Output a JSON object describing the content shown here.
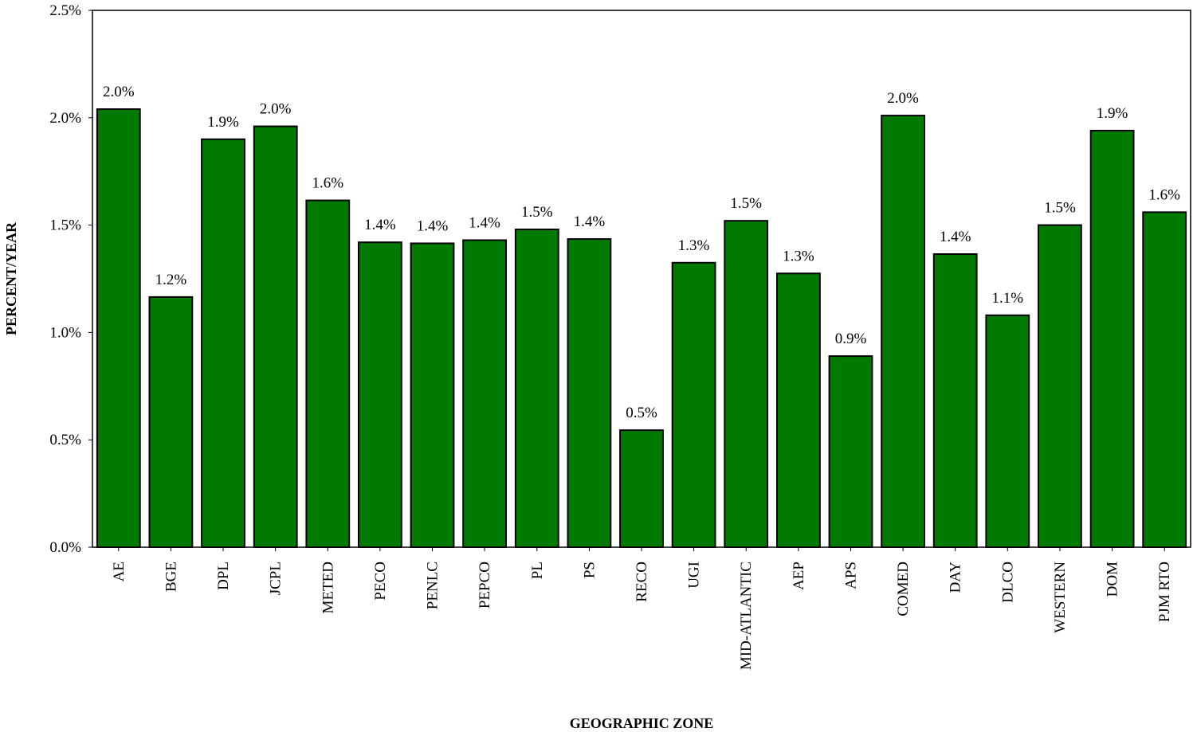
{
  "chart_data": {
    "type": "bar",
    "title": "",
    "xlabel": "GEOGRAPHIC ZONE",
    "ylabel": "PERCENT/YEAR",
    "ylim": [
      0,
      2.5
    ],
    "yticks": [
      0.0,
      0.5,
      1.0,
      1.5,
      2.0,
      2.5
    ],
    "ytick_labels": [
      "0.0%",
      "0.5%",
      "1.0%",
      "1.5%",
      "2.0%",
      "2.5%"
    ],
    "grid": false,
    "legend": "none",
    "bar_color": "#007a00",
    "categories": [
      "AE",
      "BGE",
      "DPL",
      "JCPL",
      "METED",
      "PECO",
      "PENLC",
      "PEPCO",
      "PL",
      "PS",
      "RECO",
      "UGI",
      "MID-ATLANTIC",
      "AEP",
      "APS",
      "COMED",
      "DAY",
      "DLCO",
      "WESTERN",
      "DOM",
      "PJM RTO"
    ],
    "values": [
      2.04,
      1.165,
      1.9,
      1.96,
      1.615,
      1.42,
      1.415,
      1.43,
      1.48,
      1.435,
      0.545,
      1.325,
      1.52,
      1.275,
      0.89,
      2.01,
      1.365,
      1.08,
      1.5,
      1.94,
      1.56
    ],
    "data_labels": [
      "2.0%",
      "1.2%",
      "1.9%",
      "2.0%",
      "1.6%",
      "1.4%",
      "1.4%",
      "1.4%",
      "1.5%",
      "1.4%",
      "0.5%",
      "1.3%",
      "1.5%",
      "1.3%",
      "0.9%",
      "2.0%",
      "1.4%",
      "1.1%",
      "1.5%",
      "1.9%",
      "1.6%"
    ]
  }
}
